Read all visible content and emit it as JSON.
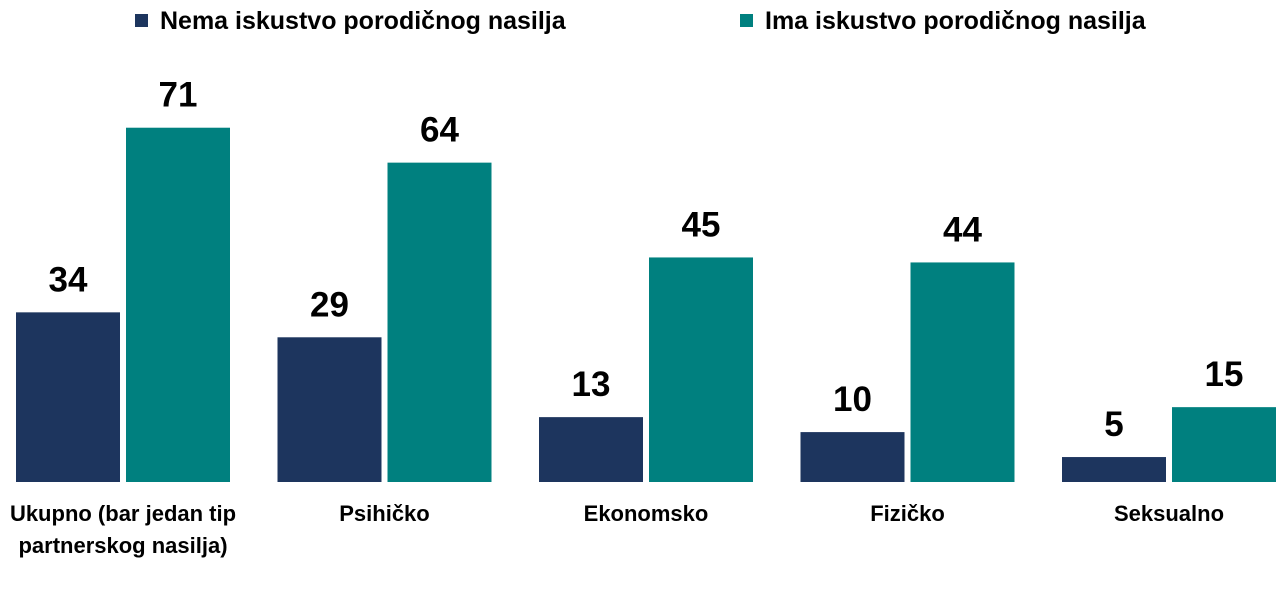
{
  "chart_data": {
    "type": "bar",
    "categories": [
      "Ukupno (bar jedan tip partnerskog nasilja)",
      "Psihičko",
      "Ekonomsko",
      "Fizičko",
      "Seksualno"
    ],
    "series": [
      {
        "name": "Nema iskustvo porodičnog nasilja",
        "color": "#1d355e",
        "values": [
          34,
          29,
          13,
          10,
          5
        ]
      },
      {
        "name": "Ima iskustvo porodičnog nasilja",
        "color": "#00807f",
        "values": [
          71,
          64,
          45,
          44,
          15
        ]
      }
    ],
    "legend": "top"
  }
}
